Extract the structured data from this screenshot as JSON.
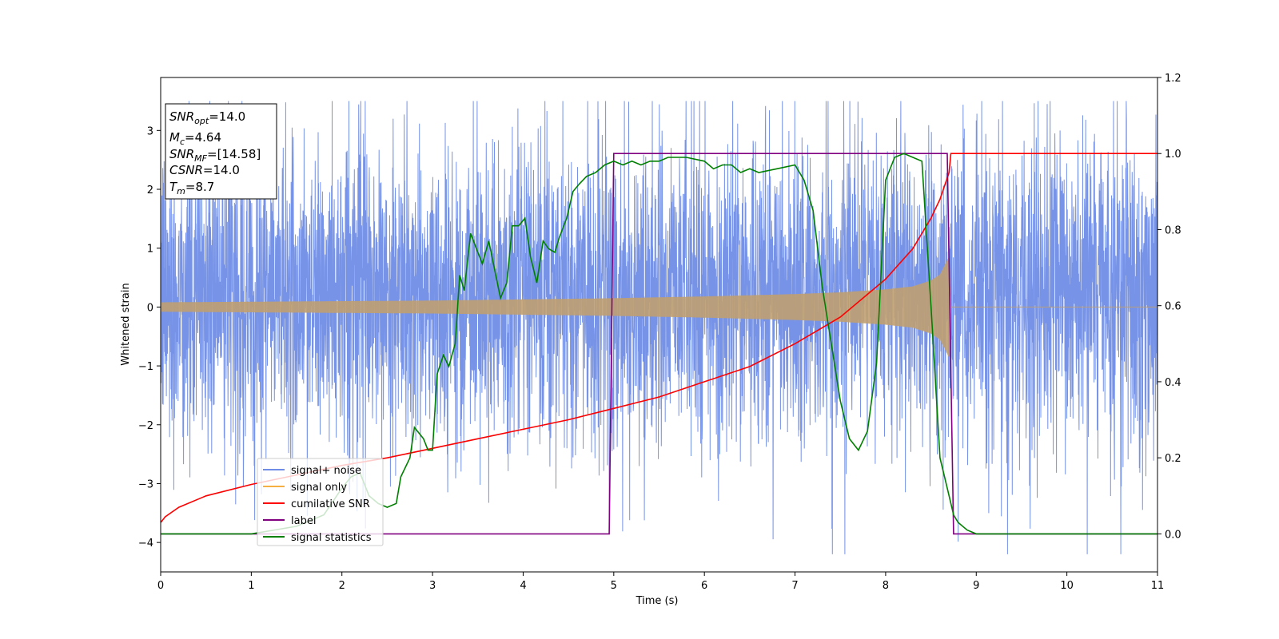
{
  "chart_data": {
    "type": "line",
    "xlabel": "Time (s)",
    "ylabel": "Whitened strain",
    "xlim": [
      0,
      11
    ],
    "ylim_left": [
      -4.5,
      3.9
    ],
    "ylim_right": [
      -0.1,
      1.2
    ],
    "x_ticks": [
      "0",
      "1",
      "2",
      "3",
      "4",
      "5",
      "6",
      "7",
      "8",
      "9",
      "10",
      "11"
    ],
    "y_ticks_left": [
      "−4",
      "−3",
      "−2",
      "−1",
      "0",
      "1",
      "2",
      "3"
    ],
    "y_ticks_right": [
      "0.0",
      "0.2",
      "0.4",
      "0.6",
      "0.8",
      "1.0",
      "1.2"
    ],
    "info_box": {
      "snr_opt": "=14.0",
      "mc": "=4.64",
      "snr_mf": "=[14.58]",
      "csnr": "=14.0",
      "tm": "=8.7"
    },
    "legend": {
      "placement": "lower-left",
      "items": [
        {
          "label": "signal+ noise",
          "color": "#6f8de6"
        },
        {
          "label": "signal only",
          "color": "#f5b041"
        },
        {
          "label": "cumilative SNR",
          "color": "#ff0000"
        },
        {
          "label": "label",
          "color": "#800080"
        },
        {
          "label": "signal statistics",
          "color": "#008000"
        }
      ]
    },
    "series": [
      {
        "name": "signal+ noise",
        "color": "#6f8de6",
        "axis": "left",
        "description_values": {
          "noise_band": [
            -2.2,
            2.6
          ],
          "max": 3.5,
          "min": -4.2
        }
      },
      {
        "name": "signal only",
        "color": "#c0a070",
        "axis": "left",
        "envelope_x": [
          0,
          1,
          2,
          3,
          4,
          5,
          6,
          7,
          7.5,
          8,
          8.3,
          8.5,
          8.6,
          8.7,
          8.72,
          11
        ],
        "envelope_amp": [
          0.08,
          0.09,
          0.1,
          0.11,
          0.13,
          0.15,
          0.18,
          0.22,
          0.25,
          0.3,
          0.35,
          0.45,
          0.55,
          0.85,
          0.0,
          0.0
        ]
      },
      {
        "name": "cumilative SNR",
        "color": "#ff0000",
        "axis": "right",
        "x": [
          0,
          0.05,
          0.2,
          0.5,
          1,
          1.5,
          2,
          2.5,
          3,
          3.5,
          4,
          4.5,
          5,
          5.5,
          6,
          6.5,
          7,
          7.5,
          8,
          8.3,
          8.5,
          8.6,
          8.7,
          8.72,
          11
        ],
        "y": [
          0.03,
          0.045,
          0.07,
          0.1,
          0.13,
          0.155,
          0.18,
          0.2,
          0.225,
          0.25,
          0.275,
          0.3,
          0.33,
          0.36,
          0.4,
          0.44,
          0.5,
          0.57,
          0.67,
          0.75,
          0.83,
          0.88,
          0.95,
          1.0,
          1.0
        ]
      },
      {
        "name": "label",
        "color": "#800080",
        "axis": "right",
        "x": [
          0,
          4.95,
          5.0,
          8.68,
          8.75,
          11
        ],
        "y": [
          0.0,
          0.0,
          1.0,
          1.0,
          0.0,
          0.0
        ]
      },
      {
        "name": "signal statistics",
        "color": "#008000",
        "axis": "right",
        "x": [
          0,
          0.5,
          1,
          1.5,
          1.8,
          2.0,
          2.1,
          2.2,
          2.3,
          2.4,
          2.5,
          2.6,
          2.65,
          2.75,
          2.8,
          2.9,
          2.95,
          3.0,
          3.05,
          3.12,
          3.18,
          3.25,
          3.3,
          3.35,
          3.42,
          3.5,
          3.55,
          3.62,
          3.75,
          3.82,
          3.88,
          3.95,
          4.02,
          4.08,
          4.15,
          4.22,
          4.28,
          4.35,
          4.4,
          4.48,
          4.55,
          4.62,
          4.7,
          4.8,
          4.9,
          5.0,
          5.1,
          5.2,
          5.3,
          5.4,
          5.5,
          5.6,
          5.8,
          6.0,
          6.1,
          6.2,
          6.3,
          6.4,
          6.5,
          6.6,
          6.8,
          7.0,
          7.1,
          7.2,
          7.3,
          7.4,
          7.5,
          7.6,
          7.7,
          7.8,
          7.9,
          8.0,
          8.1,
          8.2,
          8.3,
          8.4,
          8.5,
          8.6,
          8.7,
          8.75,
          8.8,
          8.9,
          9.0,
          9.5,
          10,
          11
        ],
        "y": [
          0.0,
          0.0,
          0.0,
          0.02,
          0.05,
          0.12,
          0.15,
          0.16,
          0.1,
          0.08,
          0.07,
          0.08,
          0.15,
          0.2,
          0.28,
          0.25,
          0.22,
          0.22,
          0.42,
          0.47,
          0.44,
          0.5,
          0.68,
          0.64,
          0.79,
          0.74,
          0.71,
          0.77,
          0.62,
          0.66,
          0.81,
          0.81,
          0.83,
          0.73,
          0.66,
          0.77,
          0.75,
          0.74,
          0.78,
          0.83,
          0.9,
          0.92,
          0.94,
          0.95,
          0.97,
          0.98,
          0.97,
          0.98,
          0.97,
          0.98,
          0.98,
          0.99,
          0.99,
          0.98,
          0.96,
          0.97,
          0.97,
          0.95,
          0.96,
          0.95,
          0.96,
          0.97,
          0.93,
          0.85,
          0.65,
          0.5,
          0.35,
          0.25,
          0.22,
          0.27,
          0.45,
          0.93,
          0.99,
          1.0,
          0.99,
          0.98,
          0.6,
          0.2,
          0.1,
          0.05,
          0.03,
          0.01,
          0.0,
          0.0,
          0.0,
          0.0
        ]
      }
    ]
  }
}
